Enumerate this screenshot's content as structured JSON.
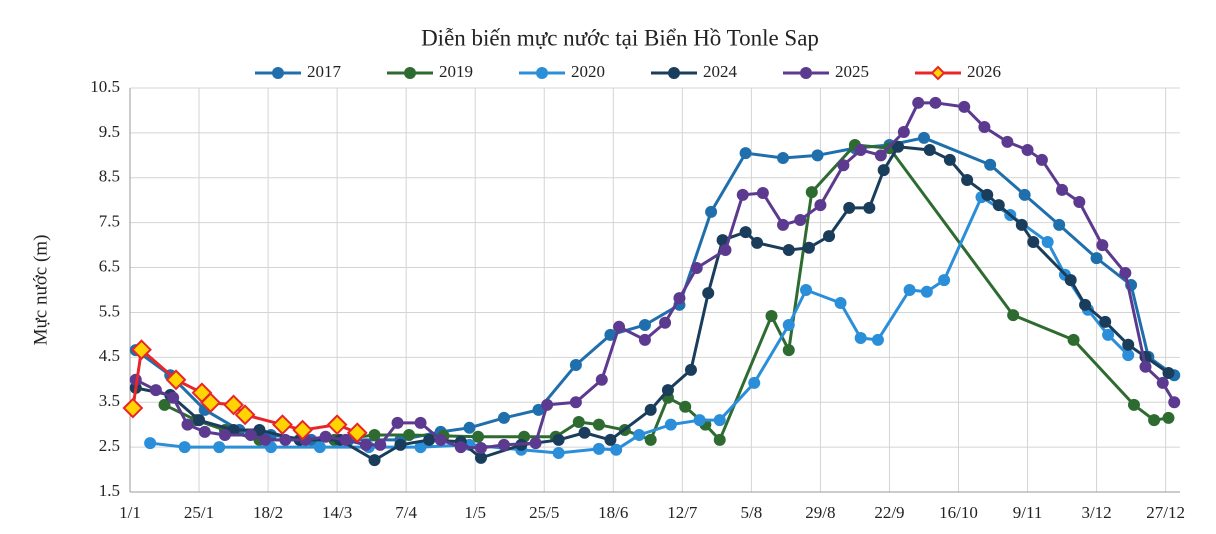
{
  "chart_data": {
    "type": "line",
    "title": "Diễn biến mực nước tại Biển Hồ Tonle Sap",
    "y_label": "Mực nước (m)",
    "xlim": [
      1,
      366
    ],
    "xticks": [
      {
        "value": 1,
        "label": "1/1"
      },
      {
        "value": 25,
        "label": "25/1"
      },
      {
        "value": 49,
        "label": "18/2"
      },
      {
        "value": 73,
        "label": "14/3"
      },
      {
        "value": 97,
        "label": "7/4"
      },
      {
        "value": 121,
        "label": "1/5"
      },
      {
        "value": 145,
        "label": "25/5"
      },
      {
        "value": 169,
        "label": "18/6"
      },
      {
        "value": 193,
        "label": "12/7"
      },
      {
        "value": 217,
        "label": "5/8"
      },
      {
        "value": 241,
        "label": "29/8"
      },
      {
        "value": 265,
        "label": "22/9"
      },
      {
        "value": 289,
        "label": "16/10"
      },
      {
        "value": 313,
        "label": "9/11"
      },
      {
        "value": 337,
        "label": "3/12"
      },
      {
        "value": 361,
        "label": "27/12"
      }
    ],
    "ylim": [
      1.5,
      10.5
    ],
    "yticks": [
      1.5,
      2.5,
      3.5,
      4.5,
      5.5,
      6.5,
      7.5,
      8.5,
      9.5,
      10.5
    ],
    "grid": true,
    "legend": "top",
    "series": [
      {
        "name": "2017",
        "color": "#1f6fad",
        "marker": "circle",
        "x": [
          3,
          15,
          27,
          39,
          50,
          64,
          77,
          95,
          109,
          119,
          131,
          143,
          156,
          168,
          180,
          192,
          203,
          215,
          228,
          240,
          253,
          265,
          277,
          300,
          312,
          324,
          337,
          349,
          355,
          364
        ],
        "values": [
          4.66,
          4.1,
          3.33,
          2.88,
          2.77,
          2.66,
          2.66,
          2.66,
          2.84,
          2.93,
          3.15,
          3.33,
          4.33,
          5.0,
          5.22,
          5.67,
          7.74,
          9.05,
          8.94,
          9.0,
          9.16,
          9.23,
          9.39,
          8.79,
          8.12,
          7.45,
          6.71,
          6.11,
          4.51,
          4.1
        ]
      },
      {
        "name": "2019",
        "color": "#2e6b30",
        "marker": "circle",
        "x": [
          13,
          24,
          34,
          46,
          60,
          72,
          86,
          98,
          110,
          122,
          138,
          149,
          157,
          164,
          173,
          182,
          188,
          194,
          201,
          206,
          224,
          230,
          238,
          253,
          265,
          308,
          329,
          350,
          357,
          362
        ],
        "values": [
          3.44,
          3.1,
          2.88,
          2.66,
          2.66,
          2.66,
          2.77,
          2.77,
          2.75,
          2.73,
          2.73,
          2.73,
          3.06,
          3.0,
          2.88,
          2.66,
          3.6,
          3.4,
          3.0,
          2.66,
          5.42,
          4.66,
          8.18,
          9.23,
          9.16,
          5.44,
          4.89,
          3.44,
          3.1,
          3.15
        ]
      },
      {
        "name": "2020",
        "color": "#2a8fd8",
        "marker": "circle",
        "x": [
          8,
          20,
          32,
          50,
          67,
          84,
          102,
          119,
          137,
          150,
          164,
          170,
          178,
          189,
          199,
          206,
          218,
          230,
          236,
          248,
          255,
          261,
          272,
          278,
          284,
          297,
          307,
          320,
          326,
          334,
          341,
          348
        ],
        "values": [
          2.59,
          2.5,
          2.5,
          2.5,
          2.5,
          2.5,
          2.5,
          2.55,
          2.44,
          2.37,
          2.46,
          2.44,
          2.77,
          3.0,
          3.1,
          3.1,
          3.93,
          5.22,
          6.0,
          5.71,
          4.93,
          4.89,
          6.0,
          5.96,
          6.22,
          8.07,
          7.67,
          7.07,
          6.34,
          5.56,
          5.0,
          4.55
        ]
      },
      {
        "name": "2024",
        "color": "#1a3d5c",
        "marker": "circle",
        "x": [
          3,
          15,
          25,
          37,
          46,
          60,
          74,
          86,
          95,
          105,
          116,
          123,
          137,
          150,
          159,
          168,
          182,
          188,
          196,
          202,
          207,
          215,
          219,
          230,
          237,
          244,
          251,
          258,
          263,
          268,
          279,
          286,
          292,
          299,
          303,
          311,
          315,
          328,
          333,
          340,
          348,
          354,
          362
        ],
        "values": [
          3.82,
          3.66,
          3.1,
          2.88,
          2.88,
          2.66,
          2.66,
          2.21,
          2.55,
          2.66,
          2.62,
          2.26,
          2.55,
          2.66,
          2.82,
          2.66,
          3.33,
          3.77,
          4.22,
          5.93,
          7.11,
          7.29,
          7.05,
          6.89,
          6.94,
          7.2,
          7.83,
          7.83,
          8.67,
          9.19,
          9.12,
          8.9,
          8.45,
          8.12,
          7.89,
          7.45,
          7.07,
          6.22,
          5.67,
          5.29,
          4.78,
          4.51,
          4.15
        ]
      },
      {
        "name": "2025",
        "color": "#5c3a8f",
        "marker": "circle",
        "x": [
          3,
          10,
          16,
          21,
          27,
          34,
          43,
          48,
          55,
          62,
          69,
          76,
          83,
          88,
          94,
          102,
          109,
          116,
          123,
          131,
          142,
          146,
          156,
          165,
          171,
          180,
          187,
          192,
          198,
          208,
          214,
          221,
          228,
          234,
          241,
          249,
          255,
          262,
          270,
          275,
          281,
          291,
          298,
          306,
          313,
          318,
          325,
          331,
          339,
          347,
          354,
          360,
          364
        ],
        "values": [
          4.0,
          3.77,
          3.6,
          3.0,
          2.84,
          2.77,
          2.77,
          2.66,
          2.66,
          2.66,
          2.73,
          2.66,
          2.55,
          2.55,
          3.04,
          3.04,
          2.66,
          2.5,
          2.48,
          2.55,
          2.59,
          3.44,
          3.5,
          4.0,
          5.18,
          4.89,
          5.27,
          5.82,
          6.49,
          6.89,
          8.12,
          8.16,
          7.45,
          7.56,
          7.89,
          8.78,
          9.12,
          9.0,
          9.52,
          10.17,
          10.17,
          10.08,
          9.63,
          9.3,
          9.12,
          8.9,
          8.23,
          7.96,
          7.0,
          6.38,
          4.29,
          3.93,
          3.5
        ]
      },
      {
        "name": "2026",
        "color": "#e8262a",
        "marker": "diamond",
        "marker_fill": "#ffd400",
        "x": [
          2,
          5,
          17,
          26,
          29,
          37,
          41,
          54,
          61,
          73,
          80
        ],
        "values": [
          3.37,
          4.67,
          4.0,
          3.71,
          3.49,
          3.44,
          3.22,
          3.0,
          2.88,
          3.0,
          2.82
        ]
      }
    ]
  }
}
